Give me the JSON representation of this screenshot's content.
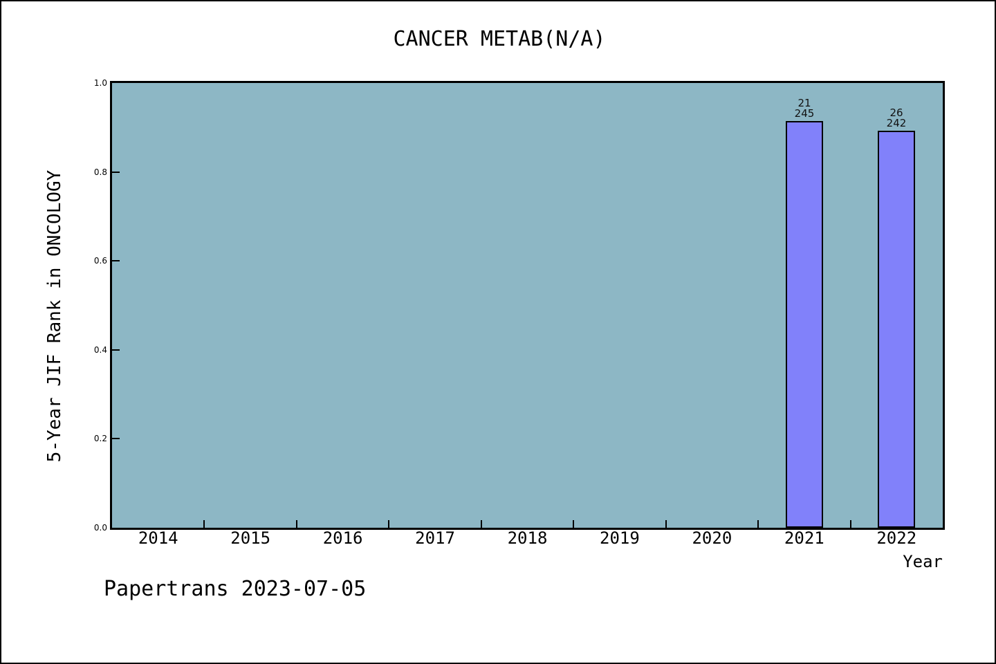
{
  "title": "CANCER METAB(N/A)",
  "footer": "Papertrans 2023-07-05",
  "chart_data": {
    "type": "bar",
    "title": "CANCER METAB(N/A)",
    "xlabel": "Year",
    "ylabel": "5-Year JIF Rank in ONCOLOGY",
    "xlim": [
      2013.5,
      2022.5
    ],
    "ylim": [
      0.0,
      1.0
    ],
    "yticks": [
      0.0,
      0.2,
      0.4,
      0.6,
      0.8,
      1.0
    ],
    "ytick_labels": [
      "0.0",
      "0.2",
      "0.4",
      "0.6",
      "0.8",
      "1.0"
    ],
    "categories": [
      "2014",
      "2015",
      "2016",
      "2017",
      "2018",
      "2019",
      "2020",
      "2021",
      "2022"
    ],
    "x_boundary_ticks": [
      2014.5,
      2015.5,
      2016.5,
      2017.5,
      2018.5,
      2019.5,
      2020.5,
      2021.5
    ],
    "grid": false,
    "legend": null,
    "bar_width_years": 0.405,
    "series": [
      {
        "name": "5-Year JIF Rank in ONCOLOGY",
        "points": [
          {
            "x": 2021,
            "rank": 21,
            "total": 245,
            "value": 0.9143,
            "label_top": "21",
            "label_bottom": "245"
          },
          {
            "x": 2022,
            "rank": 26,
            "total": 242,
            "value": 0.8926,
            "label_top": "26",
            "label_bottom": "242"
          }
        ]
      }
    ],
    "colors": {
      "plot_bg": "#8db7c5",
      "bar_fill": "#8181fa",
      "bar_edge": "#000000",
      "axis": "#000000",
      "text": "#000000"
    }
  }
}
